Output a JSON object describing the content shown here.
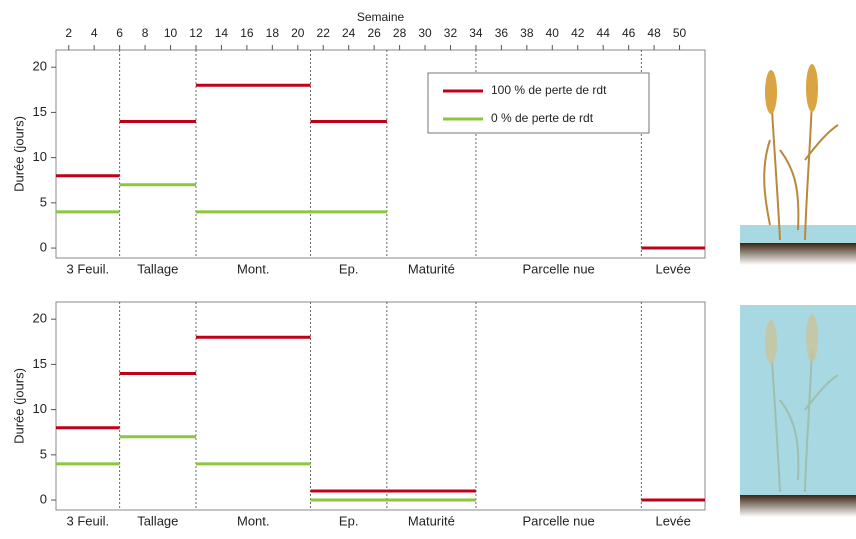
{
  "chart_data": [
    {
      "type": "step-segments",
      "x_label": "Semaine",
      "y_label": "Durée (jours)",
      "xlim": [
        1,
        52
      ],
      "xticks": [
        2,
        4,
        6,
        8,
        10,
        12,
        14,
        16,
        18,
        20,
        22,
        24,
        26,
        28,
        30,
        32,
        34,
        36,
        38,
        40,
        42,
        44,
        46,
        48,
        50
      ],
      "ylim": [
        -1.1,
        21.9
      ],
      "yticks": [
        0,
        5,
        10,
        15,
        20
      ],
      "categories": [
        "3 Feuil.",
        "Tallage",
        "Mont.",
        "Ep.",
        "Maturité",
        "Parcelle nue",
        "Levée"
      ],
      "bins": [
        1,
        6,
        12,
        21,
        27,
        34,
        47,
        52
      ],
      "legend": "upper-center",
      "series": [
        {
          "name": "100 % de perte de rdt",
          "color": "#c00018",
          "values": [
            8,
            14,
            18,
            14,
            null,
            null,
            0
          ]
        },
        {
          "name": "0 % de perte de rdt",
          "color": "#8cc63f",
          "values": [
            4,
            7,
            4,
            4,
            null,
            null,
            null
          ]
        }
      ]
    },
    {
      "type": "step-segments",
      "y_label": "Durée (jours)",
      "xlim": [
        1,
        52
      ],
      "ylim": [
        -1.1,
        21.9
      ],
      "yticks": [
        0,
        5,
        10,
        15,
        20
      ],
      "categories": [
        "3 Feuil.",
        "Tallage",
        "Mont.",
        "Ep.",
        "Maturité",
        "Parcelle nue",
        "Levée"
      ],
      "bins": [
        1,
        6,
        12,
        21,
        27,
        34,
        47,
        52
      ],
      "series": [
        {
          "color": "#c00018",
          "values": [
            8,
            14,
            18,
            1,
            1,
            null,
            0
          ]
        },
        {
          "color": "#8cc63f",
          "values": [
            4,
            7,
            4,
            0,
            0,
            null,
            null
          ]
        }
      ]
    }
  ]
}
